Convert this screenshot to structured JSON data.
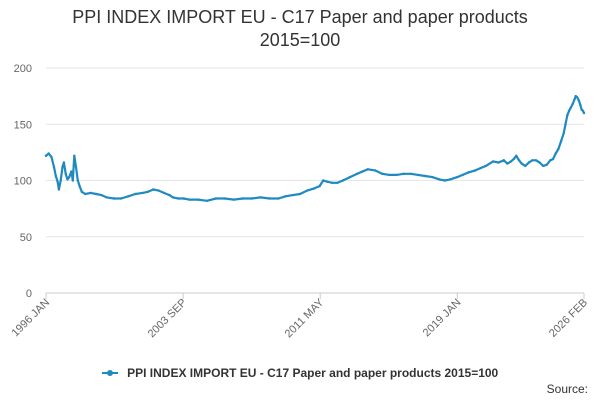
{
  "title_line1": "PPI INDEX IMPORT EU - C17 Paper and paper products",
  "title_line2": "2015=100",
  "legend_label": "PPI INDEX IMPORT EU - C17 Paper and paper products 2015=100",
  "source_label": "Source:",
  "colors": {
    "series": "#1f8ac0",
    "grid": "#e6e6e6",
    "axis_text": "#666666"
  },
  "chart_data": {
    "type": "line",
    "title": "PPI INDEX IMPORT EU - C17 Paper and paper products 2015=100",
    "xlabel": "",
    "ylabel": "",
    "ylim": [
      0,
      200
    ],
    "xlim": [
      1996.0,
      2026.083
    ],
    "y_ticks": [
      0,
      50,
      100,
      150,
      200
    ],
    "x_ticks": [
      {
        "t": 1996.0,
        "label": "1996 JAN"
      },
      {
        "t": 2003.667,
        "label": "2003 SEP"
      },
      {
        "t": 2011.333,
        "label": "2011 MAY"
      },
      {
        "t": 2019.0,
        "label": "2019 JAN"
      },
      {
        "t": 2026.083,
        "label": "2026 FEB"
      }
    ],
    "series": [
      {
        "name": "PPI INDEX IMPORT EU - C17 Paper and paper products 2015=100",
        "points": [
          [
            1996.0,
            122
          ],
          [
            1996.15,
            124
          ],
          [
            1996.3,
            121
          ],
          [
            1996.45,
            112
          ],
          [
            1996.55,
            104
          ],
          [
            1996.65,
            99
          ],
          [
            1996.72,
            92
          ],
          [
            1996.82,
            100
          ],
          [
            1996.92,
            112
          ],
          [
            1997.0,
            116
          ],
          [
            1997.1,
            106
          ],
          [
            1997.2,
            101
          ],
          [
            1997.3,
            103
          ],
          [
            1997.42,
            108
          ],
          [
            1997.5,
            100
          ],
          [
            1997.58,
            122
          ],
          [
            1997.68,
            112
          ],
          [
            1997.78,
            100
          ],
          [
            1997.88,
            95
          ],
          [
            1998.0,
            90
          ],
          [
            1998.2,
            88
          ],
          [
            1998.5,
            89
          ],
          [
            1998.8,
            88
          ],
          [
            1999.1,
            87
          ],
          [
            1999.4,
            85
          ],
          [
            1999.8,
            84
          ],
          [
            2000.2,
            84
          ],
          [
            2000.6,
            86
          ],
          [
            2001.0,
            88
          ],
          [
            2001.4,
            89
          ],
          [
            2001.7,
            90
          ],
          [
            2002.0,
            92
          ],
          [
            2002.3,
            91
          ],
          [
            2002.6,
            89
          ],
          [
            2002.9,
            87
          ],
          [
            2003.1,
            85
          ],
          [
            2003.4,
            84
          ],
          [
            2003.7,
            84
          ],
          [
            2004.0,
            83
          ],
          [
            2004.5,
            83
          ],
          [
            2005.0,
            82
          ],
          [
            2005.5,
            84
          ],
          [
            2006.0,
            84
          ],
          [
            2006.5,
            83
          ],
          [
            2007.0,
            84
          ],
          [
            2007.5,
            84
          ],
          [
            2008.0,
            85
          ],
          [
            2008.5,
            84
          ],
          [
            2009.0,
            84
          ],
          [
            2009.4,
            86
          ],
          [
            2009.8,
            87
          ],
          [
            2010.2,
            88
          ],
          [
            2010.6,
            91
          ],
          [
            2011.0,
            93
          ],
          [
            2011.3,
            95
          ],
          [
            2011.5,
            100
          ],
          [
            2011.7,
            99
          ],
          [
            2012.0,
            98
          ],
          [
            2012.3,
            98
          ],
          [
            2012.6,
            100
          ],
          [
            2013.0,
            103
          ],
          [
            2013.4,
            106
          ],
          [
            2013.7,
            108
          ],
          [
            2014.0,
            110
          ],
          [
            2014.4,
            109
          ],
          [
            2014.8,
            106
          ],
          [
            2015.2,
            105
          ],
          [
            2015.6,
            105
          ],
          [
            2016.0,
            106
          ],
          [
            2016.4,
            106
          ],
          [
            2016.8,
            105
          ],
          [
            2017.2,
            104
          ],
          [
            2017.6,
            103
          ],
          [
            2018.0,
            101
          ],
          [
            2018.3,
            100
          ],
          [
            2018.6,
            101
          ],
          [
            2019.0,
            103
          ],
          [
            2019.3,
            105
          ],
          [
            2019.6,
            107
          ],
          [
            2020.0,
            109
          ],
          [
            2020.3,
            111
          ],
          [
            2020.6,
            113
          ],
          [
            2021.0,
            117
          ],
          [
            2021.3,
            116
          ],
          [
            2021.6,
            118
          ],
          [
            2021.8,
            115
          ],
          [
            2022.0,
            117
          ],
          [
            2022.15,
            119
          ],
          [
            2022.3,
            122
          ],
          [
            2022.45,
            118
          ],
          [
            2022.6,
            115
          ],
          [
            2022.8,
            113
          ],
          [
            2023.0,
            116
          ],
          [
            2023.2,
            118
          ],
          [
            2023.4,
            118
          ],
          [
            2023.6,
            116
          ],
          [
            2023.8,
            113
          ],
          [
            2024.0,
            114
          ],
          [
            2024.2,
            118
          ],
          [
            2024.35,
            119
          ],
          [
            2024.5,
            124
          ],
          [
            2024.65,
            128
          ],
          [
            2024.8,
            135
          ],
          [
            2024.95,
            142
          ],
          [
            2025.05,
            150
          ],
          [
            2025.15,
            158
          ],
          [
            2025.25,
            162
          ],
          [
            2025.35,
            165
          ],
          [
            2025.45,
            168
          ],
          [
            2025.55,
            172
          ],
          [
            2025.62,
            175
          ],
          [
            2025.7,
            174
          ],
          [
            2025.8,
            171
          ],
          [
            2025.88,
            167
          ],
          [
            2025.95,
            163
          ],
          [
            2026.02,
            162
          ],
          [
            2026.083,
            160
          ]
        ]
      }
    ]
  }
}
